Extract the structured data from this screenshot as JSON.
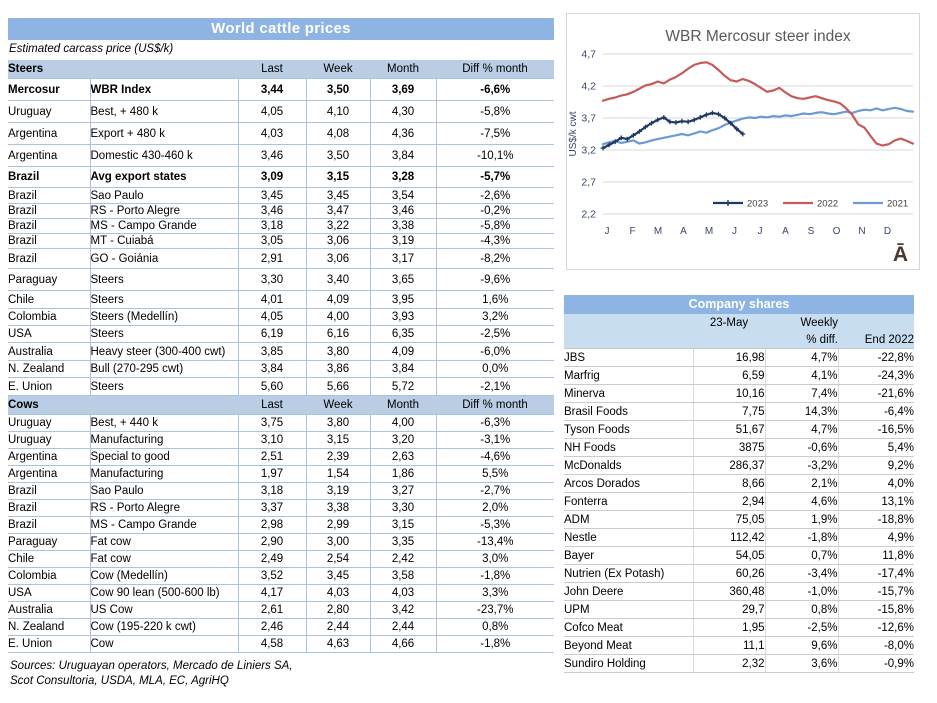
{
  "colors": {
    "title_bar_blue": "#8EB4E3",
    "section_band_blue": "#B9CDE5",
    "shares_band_blue": "#C9DDF1",
    "row_border_blue": "#A8C3DF",
    "line_2023_navy": "#1F3864",
    "line_2022_red": "#C55A5A",
    "line_2021_blue": "#6B9BD2"
  },
  "world_table": {
    "title": "World cattle prices",
    "subtitle": "Estimated carcass price (US$/k)",
    "columns": [
      "Last",
      "Week",
      "Month",
      "Diff % month"
    ],
    "sections": [
      {
        "name": "Steers",
        "rows": [
          {
            "country": "Mercosur",
            "desc": "WBR Index",
            "last": "3,44",
            "week": "3,50",
            "month": "3,69",
            "diff": "-6,6%",
            "bold": true
          },
          {
            "country": "Uruguay",
            "desc": "Best, + 480 k",
            "last": "4,05",
            "week": "4,10",
            "month": "4,30",
            "diff": "-5,8%"
          },
          {
            "country": "Argentina",
            "desc": "Export + 480 k",
            "last": "4,03",
            "week": "4,08",
            "month": "4,36",
            "diff": "-7,5%"
          },
          {
            "country": "Argentina",
            "desc": "Domestic 430-460 k",
            "last": "3,46",
            "week": "3,50",
            "month": "3,84",
            "diff": "-10,1%"
          },
          {
            "country": "Brazil",
            "desc": "Avg export states",
            "last": "3,09",
            "week": "3,15",
            "month": "3,28",
            "diff": "-5,7%",
            "bold": true
          },
          {
            "country": "Brazil",
            "desc": "Sao Paulo",
            "last": "3,45",
            "week": "3,45",
            "month": "3,54",
            "diff": "-2,6%"
          },
          {
            "country": "Brazil",
            "desc": "RS - Porto Alegre",
            "last": "3,46",
            "week": "3,47",
            "month": "3,46",
            "diff": "-0,2%"
          },
          {
            "country": "Brazil",
            "desc": "MS - Campo Grande",
            "last": "3,18",
            "week": "3,22",
            "month": "3,38",
            "diff": "-5,8%"
          },
          {
            "country": "Brazil",
            "desc": "MT - Cuiabá",
            "last": "3,05",
            "week": "3,06",
            "month": "3,19",
            "diff": "-4,3%"
          },
          {
            "country": "Brazil",
            "desc": "GO - Goiánia",
            "last": "2,91",
            "week": "3,06",
            "month": "3,17",
            "diff": "-8,2%"
          },
          {
            "country": "Paraguay",
            "desc": "Steers",
            "last": "3,30",
            "week": "3,40",
            "month": "3,65",
            "diff": "-9,6%"
          },
          {
            "country": "Chile",
            "desc": "Steers",
            "last": "4,01",
            "week": "4,09",
            "month": "3,95",
            "diff": "1,6%"
          },
          {
            "country": "Colombia",
            "desc": "Steers (Medellín)",
            "last": "4,05",
            "week": "4,00",
            "month": "3,93",
            "diff": "3,2%"
          },
          {
            "country": "USA",
            "desc": "Steers",
            "last": "6,19",
            "week": "6,16",
            "month": "6,35",
            "diff": "-2,5%"
          },
          {
            "country": "Australia",
            "desc": "Heavy steer (300-400 cwt)",
            "last": "3,85",
            "week": "3,80",
            "month": "4,09",
            "diff": "-6,0%"
          },
          {
            "country": "N. Zealand",
            "desc": "Bull (270-295 cwt)",
            "last": "3,84",
            "week": "3,86",
            "month": "3,84",
            "diff": "0,0%"
          },
          {
            "country": "E. Union",
            "desc": "Steers",
            "last": "5,60",
            "week": "5,66",
            "month": "5,72",
            "diff": "-2,1%"
          }
        ]
      },
      {
        "name": "Cows",
        "rows": [
          {
            "country": "Uruguay",
            "desc": "Best, + 440 k",
            "last": "3,75",
            "week": "3,80",
            "month": "4,00",
            "diff": "-6,3%"
          },
          {
            "country": "Uruguay",
            "desc": "Manufacturing",
            "last": "3,10",
            "week": "3,15",
            "month": "3,20",
            "diff": "-3,1%"
          },
          {
            "country": "Argentina",
            "desc": "Special to good",
            "last": "2,51",
            "week": "2,39",
            "month": "2,63",
            "diff": "-4,6%"
          },
          {
            "country": "Argentina",
            "desc": "Manufacturing",
            "last": "1,97",
            "week": "1,54",
            "month": "1,86",
            "diff": "5,5%"
          },
          {
            "country": "Brazil",
            "desc": "Sao Paulo",
            "last": "3,18",
            "week": "3,19",
            "month": "3,27",
            "diff": "-2,7%"
          },
          {
            "country": "Brazil",
            "desc": "RS - Porto Alegre",
            "last": "3,37",
            "week": "3,38",
            "month": "3,30",
            "diff": "2,0%"
          },
          {
            "country": "Brazil",
            "desc": "MS - Campo Grande",
            "last": "2,98",
            "week": "2,99",
            "month": "3,15",
            "diff": "-5,3%"
          },
          {
            "country": "Paraguay",
            "desc": "Fat cow",
            "last": "2,90",
            "week": "3,00",
            "month": "3,35",
            "diff": "-13,4%"
          },
          {
            "country": "Chile",
            "desc": "Fat cow",
            "last": "2,49",
            "week": "2,54",
            "month": "2,42",
            "diff": "3,0%"
          },
          {
            "country": "Colombia",
            "desc": "Cow (Medellín)",
            "last": "3,52",
            "week": "3,45",
            "month": "3,58",
            "diff": "-1,8%"
          },
          {
            "country": "USA",
            "desc": "Cow 90 lean (500-600 lb)",
            "last": "4,17",
            "week": "4,03",
            "month": "4,03",
            "diff": "3,3%"
          },
          {
            "country": "Australia",
            "desc": "US Cow",
            "last": "2,61",
            "week": "2,80",
            "month": "3,42",
            "diff": "-23,7%"
          },
          {
            "country": "N. Zealand",
            "desc": "Cow (195-220 k cwt)",
            "last": "2,46",
            "week": "2,44",
            "month": "2,44",
            "diff": "0,8%"
          },
          {
            "country": "E. Union",
            "desc": "Cow",
            "last": "4,58",
            "week": "4,63",
            "month": "4,66",
            "diff": "-1,8%"
          }
        ]
      }
    ],
    "sources": [
      "Sources: Uruguayan operators, Mercado de Liniers SA,",
      "Scot Consultoria, USDA, MLA, EC, AgriHQ"
    ]
  },
  "chart_data": {
    "type": "line",
    "title": "WBR Mercosur steer index",
    "ylabel": "US$/k cwt",
    "ylim": [
      2.2,
      4.7
    ],
    "yticks": [
      "4,7",
      "4,2",
      "3,7",
      "3,2",
      "2,7",
      "2,2"
    ],
    "xtick_labels": [
      "J",
      "F",
      "M",
      "A",
      "M",
      "J",
      "J",
      "A",
      "S",
      "O",
      "N",
      "D"
    ],
    "x_unit": "weeks of year",
    "grid": true,
    "legend_position": "inside bottom-right",
    "watermark": "Ā",
    "series": [
      {
        "name": "2023",
        "color": "#1F3864",
        "marker": "plus",
        "values": [
          3.23,
          3.28,
          3.33,
          3.39,
          3.37,
          3.43,
          3.49,
          3.56,
          3.62,
          3.67,
          3.71,
          3.64,
          3.63,
          3.65,
          3.64,
          3.67,
          3.71,
          3.75,
          3.78,
          3.76,
          3.7,
          3.62,
          3.53,
          3.45
        ]
      },
      {
        "name": "2022",
        "color": "#C55A5A",
        "values": [
          3.97,
          4.0,
          4.02,
          4.05,
          4.07,
          4.11,
          4.16,
          4.21,
          4.23,
          4.27,
          4.24,
          4.3,
          4.34,
          4.4,
          4.47,
          4.53,
          4.56,
          4.57,
          4.53,
          4.45,
          4.36,
          4.29,
          4.27,
          4.31,
          4.28,
          4.23,
          4.17,
          4.11,
          4.13,
          4.17,
          4.1,
          4.04,
          4.01,
          4.0,
          4.02,
          4.04,
          4.01,
          3.98,
          3.96,
          3.93,
          3.85,
          3.75,
          3.6,
          3.55,
          3.42,
          3.3,
          3.27,
          3.29,
          3.35,
          3.38,
          3.34,
          3.3
        ]
      },
      {
        "name": "2021",
        "color": "#6B9BD2",
        "values": [
          3.29,
          3.32,
          3.34,
          3.31,
          3.33,
          3.35,
          3.3,
          3.32,
          3.35,
          3.37,
          3.39,
          3.41,
          3.43,
          3.45,
          3.43,
          3.46,
          3.49,
          3.47,
          3.51,
          3.54,
          3.59,
          3.63,
          3.66,
          3.69,
          3.71,
          3.7,
          3.72,
          3.71,
          3.73,
          3.72,
          3.74,
          3.73,
          3.75,
          3.77,
          3.76,
          3.78,
          3.79,
          3.77,
          3.76,
          3.78,
          3.8,
          3.78,
          3.81,
          3.83,
          3.82,
          3.85,
          3.82,
          3.84,
          3.86,
          3.84,
          3.81,
          3.8
        ]
      }
    ]
  },
  "company_shares": {
    "title": "Company shares",
    "columns": {
      "date": "23-May",
      "weekly_line1": "Weekly",
      "weekly_line2": "% diff.",
      "end": "End 2022"
    },
    "rows": [
      {
        "name": "JBS",
        "price": "16,98",
        "weekly": "4,7%",
        "end": "-22,8%"
      },
      {
        "name": "Marfrig",
        "price": "6,59",
        "weekly": "4,1%",
        "end": "-24,3%"
      },
      {
        "name": "Minerva",
        "price": "10,16",
        "weekly": "7,4%",
        "end": "-21,6%"
      },
      {
        "name": "Brasil Foods",
        "price": "7,75",
        "weekly": "14,3%",
        "end": "-6,4%"
      },
      {
        "name": "Tyson Foods",
        "price": "51,67",
        "weekly": "4,7%",
        "end": "-16,5%"
      },
      {
        "name": "NH Foods",
        "price": "3875",
        "weekly": "-0,6%",
        "end": "5,4%"
      },
      {
        "name": "McDonalds",
        "price": "286,37",
        "weekly": "-3,2%",
        "end": "9,2%"
      },
      {
        "name": "Arcos Dorados",
        "price": "8,66",
        "weekly": "2,1%",
        "end": "4,0%"
      },
      {
        "name": "Fonterra",
        "price": "2,94",
        "weekly": "4,6%",
        "end": "13,1%"
      },
      {
        "name": "ADM",
        "price": "75,05",
        "weekly": "1,9%",
        "end": "-18,8%"
      },
      {
        "name": "Nestle",
        "price": "112,42",
        "weekly": "-1,8%",
        "end": "4,9%"
      },
      {
        "name": "Bayer",
        "price": "54,05",
        "weekly": "0,7%",
        "end": "11,8%"
      },
      {
        "name": "Nutrien (Ex Potash)",
        "price": "60,26",
        "weekly": "-3,4%",
        "end": "-17,4%"
      },
      {
        "name": "John Deere",
        "price": "360,48",
        "weekly": "-1,0%",
        "end": "-15,7%"
      },
      {
        "name": "UPM",
        "price": "29,7",
        "weekly": "0,8%",
        "end": "-15,8%"
      },
      {
        "name": "Cofco Meat",
        "price": "1,95",
        "weekly": "-2,5%",
        "end": "-12,6%"
      },
      {
        "name": "Beyond Meat",
        "price": "11,1",
        "weekly": "9,6%",
        "end": "-8,0%"
      },
      {
        "name": "Sundiro Holding",
        "price": "2,32",
        "weekly": "3,6%",
        "end": "-0,9%"
      }
    ]
  }
}
